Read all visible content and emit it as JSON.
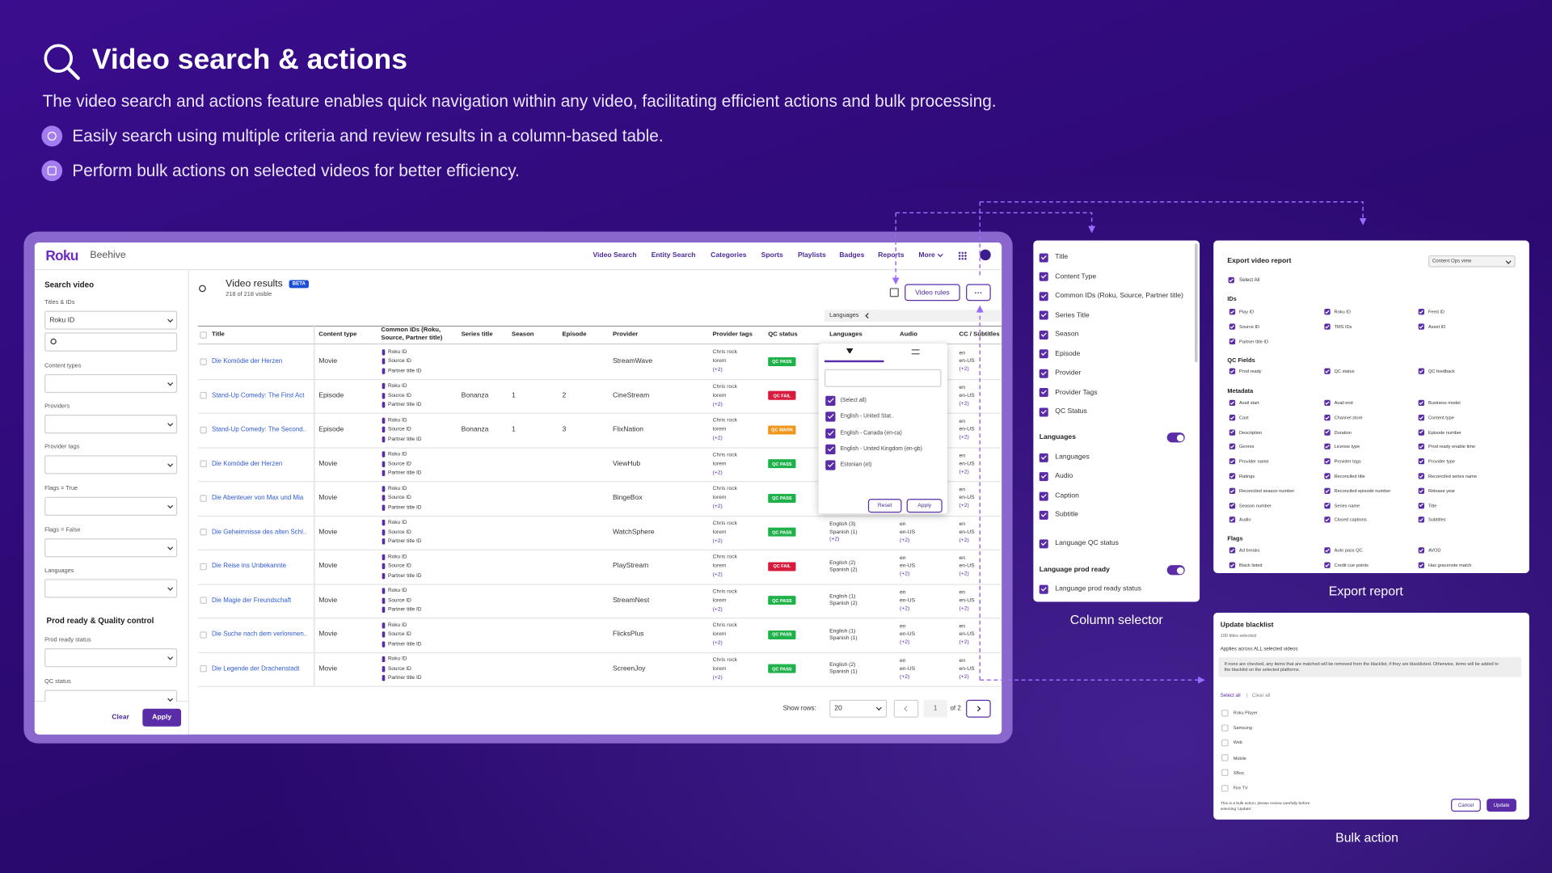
{
  "header": {
    "title": "Video search & actions",
    "description": "The video search and actions feature enables quick navigation within any video, facilitating efficient actions and bulk processing.",
    "bullets": [
      "Easily search using multiple criteria and review results in a column-based table.",
      "Perform bulk actions on selected videos for better efficiency."
    ]
  },
  "app": {
    "brand": "Roku",
    "product": "Beehive",
    "nav": [
      "Video Search",
      "Entity Search",
      "Categories",
      "Sports",
      "Playlists",
      "Badges",
      "Reports",
      "More"
    ]
  },
  "sidebar": {
    "heading": "Search video",
    "fields": [
      {
        "label": "Titles & IDs",
        "value": "Roku ID"
      },
      {
        "label": "Content types"
      },
      {
        "label": "Providers"
      },
      {
        "label": "Provider tags"
      },
      {
        "label": "Flags = True"
      },
      {
        "label": "Flags = False"
      },
      {
        "label": "Languages"
      }
    ],
    "section": "Prod ready & Quality control",
    "section_fields": [
      "Prod ready status",
      "QC status"
    ],
    "clear": "Clear",
    "apply": "Apply"
  },
  "results": {
    "title": "Video results",
    "badge": "BETA",
    "count": "218 of 218 visible",
    "rules_button": "Video rules",
    "more_button": "···"
  },
  "table": {
    "columns": [
      "Title",
      "Content type",
      "Common IDs (Roku, Source, Partner title)",
      "Series title",
      "Season",
      "Episode",
      "Provider",
      "Provider tags",
      "QC status",
      "Languages",
      "Audio",
      "CC / Subtitles"
    ],
    "id_labels": [
      "Roku ID",
      "Source ID",
      "Partner title ID"
    ],
    "tags": [
      "Chris rock",
      "lorem",
      "(+2)"
    ],
    "locale_values": [
      "en",
      "en-US",
      "(+2)"
    ],
    "rows": [
      {
        "title": "Die Komödie der Herzen",
        "type": "Movie",
        "provider": "StreamWave",
        "qc": {
          "label": "QC PASS",
          "color": "#1fb14a"
        }
      },
      {
        "title": "Stand-Up Comedy: The First Act",
        "type": "Episode",
        "series": "Bonanza",
        "season": 1,
        "episode": 2,
        "provider": "CineStream",
        "qc": {
          "label": "QC FAIL",
          "color": "#d81b3c"
        }
      },
      {
        "title": "Stand-Up Comedy: The Second..",
        "type": "Episode",
        "series": "Bonanza",
        "season": 1,
        "episode": 3,
        "provider": "FlixNation",
        "qc": {
          "label": "QC WARN",
          "color": "#f0961e"
        }
      },
      {
        "title": "Die Komödie der Herzen",
        "type": "Movie",
        "provider": "ViewHub",
        "qc": {
          "label": "QC PASS",
          "color": "#1fb14a"
        }
      },
      {
        "title": "Die Abenteuer von Max und Mia",
        "type": "Movie",
        "provider": "BingeBox",
        "qc": {
          "label": "QC PASS",
          "color": "#1fb14a"
        }
      },
      {
        "title": "Die Geheimnisse des alten Schl..",
        "type": "Movie",
        "provider": "WatchSphere",
        "qc": {
          "label": "QC PASS",
          "color": "#1fb14a"
        },
        "languages": [
          "English (3)",
          "Spanish (1)",
          "(+2)"
        ]
      },
      {
        "title": "Die Reise ins Unbekannte",
        "type": "Movie",
        "provider": "PlayStream",
        "qc": {
          "label": "QC FAIL",
          "color": "#d81b3c"
        },
        "languages": [
          "English (2)",
          "Spanish (2)"
        ]
      },
      {
        "title": "Die Magie der Freundschaft",
        "type": "Movie",
        "provider": "StreamNest",
        "qc": {
          "label": "QC PASS",
          "color": "#1fb14a"
        },
        "languages": [
          "English (1)",
          "Spanish (2)"
        ]
      },
      {
        "title": "Die Suche nach dem verlorenen..",
        "type": "Movie",
        "provider": "FlicksPlus",
        "qc": {
          "label": "QC PASS",
          "color": "#1fb14a"
        },
        "languages": [
          "English (1)",
          "Spanish (1)"
        ]
      },
      {
        "title": "Die Legende der Drachenstadt",
        "type": "Movie",
        "provider": "ScreenJoy",
        "qc": {
          "label": "QC PASS",
          "color": "#1fb14a"
        },
        "languages": [
          "English (2)",
          "Spanish (1)"
        ]
      }
    ]
  },
  "language_filter": {
    "label": "Languages",
    "options": [
      "(Select all)",
      "English - United Stat..",
      "English - Canada (en-ca)",
      "English - United Kingdom (en-gb)",
      "Estonian (et)"
    ],
    "reset": "Reset",
    "apply": "Apply"
  },
  "pagination": {
    "label": "Show rows:",
    "rows": 20,
    "page": 1,
    "of": "of 2"
  },
  "column_selector": {
    "caption": "Column selector",
    "items": [
      "Title",
      "Content Type",
      "Common IDs (Roku, Source, Partner title)",
      "Series Title",
      "Season",
      "Episode",
      "Provider",
      "Provider Tags",
      "QC Status"
    ],
    "groups": [
      {
        "title": "Languages",
        "items": [
          "Languages",
          "Audio",
          "Caption",
          "Subtitle",
          "Language QC status"
        ]
      },
      {
        "title": "Language prod ready",
        "items": [
          "Language prod ready status"
        ]
      }
    ]
  },
  "export_report": {
    "caption": "Export report",
    "title": "Export video report",
    "view": "Content Ops view",
    "select_all": "Select All",
    "sections": [
      {
        "title": "IDs",
        "items": [
          "Play ID",
          "Roku ID",
          "Feed ID",
          "Source ID",
          "TMS IDs",
          "Asset ID",
          "Partner title ID"
        ]
      },
      {
        "title": "QC Fields",
        "items": [
          "Prod ready",
          "QC status",
          "QC feedback"
        ]
      },
      {
        "title": "Metadata",
        "items": [
          "Avail start",
          "Avail end",
          "Business model",
          "Cast",
          "Channel store",
          "Content type",
          "Description",
          "Duration",
          "Episode number",
          "Genres",
          "License type",
          "Prod ready enable time",
          "Provider name",
          "Provider tags",
          "Provider type",
          "Ratings",
          "Reconciled title",
          "Reconciled series name",
          "Reconciled season number",
          "Reconciled episode number",
          "Release year",
          "Season number",
          "Series name",
          "Title",
          "Audio",
          "Closed captions",
          "Subtitles"
        ]
      },
      {
        "title": "Flags",
        "items": [
          "Ad breaks",
          "Auto pass QC",
          "AVOD",
          "Black listed",
          "Credit cue points",
          "Has gracenote match"
        ]
      }
    ]
  },
  "bulk_action": {
    "caption": "Bulk action",
    "title": "Update blacklist",
    "selected": "100 titles selected",
    "scope": "Applies across ALL selected videos",
    "notice": "If none are checked, any items that are matched will be removed from the blacklist, if they are blacklisted. Otherwise, items will be added to the blacklist on the selected platforms.",
    "select_all": "Select all",
    "separator": "|",
    "clear_all": "Clear all",
    "platforms": [
      "Roku Player",
      "Samsung",
      "Web",
      "Mobile",
      "XBox",
      "Fire TV"
    ],
    "footnote": "This is a bulk action; please review carefully before selecting 'Update'.",
    "cancel": "Cancel",
    "update": "Update"
  }
}
